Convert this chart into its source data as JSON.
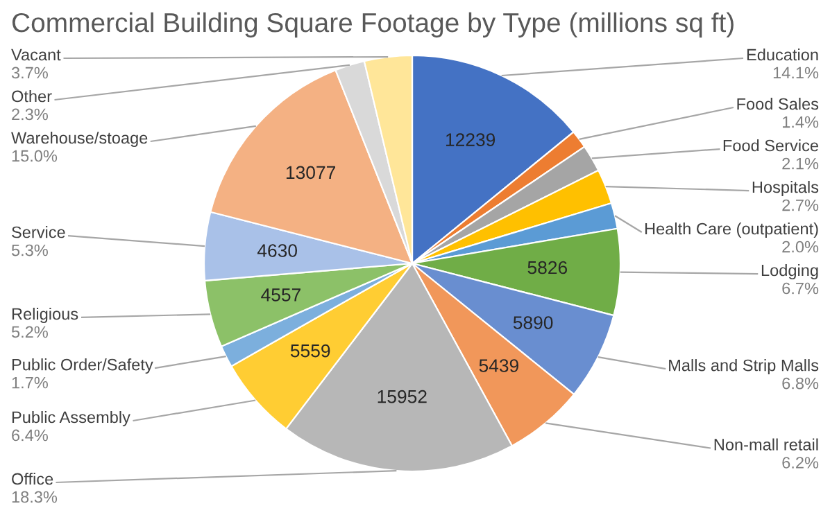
{
  "chart_data": {
    "type": "pie",
    "title": "Commercial Building Square Footage by Type (millions sq ft)",
    "categories": [
      "Education",
      "Food Sales",
      "Food Service",
      "Hospitals",
      "Health Care (outpatient)",
      "Lodging",
      "Malls and Strip Malls",
      "Non-mall retail",
      "Office",
      "Public Assembly",
      "Public Order/Safety",
      "Religious",
      "Service",
      "Warehouse/stoage",
      "Other",
      "Vacant"
    ],
    "values": [
      14.1,
      1.4,
      2.1,
      2.7,
      2.0,
      6.7,
      6.8,
      6.2,
      18.3,
      6.4,
      1.7,
      5.2,
      5.3,
      15.0,
      2.3,
      3.7
    ],
    "value_labels": [
      "14.1%",
      "1.4%",
      "2.1%",
      "2.7%",
      "2.0%",
      "6.7%",
      "6.8%",
      "6.2%",
      "18.3%",
      "6.4%",
      "1.7%",
      "5.2%",
      "5.3%",
      "15.0%",
      "2.3%",
      "3.7%"
    ],
    "colors": [
      "#4472c4",
      "#ed7d31",
      "#a5a5a5",
      "#ffc000",
      "#5b9bd5",
      "#70ad47",
      "#698ed0",
      "#f1975a",
      "#b7b7b7",
      "#ffcd33",
      "#7cafdd",
      "#8cc168",
      "#a9c1e8",
      "#f4b183",
      "#d9d9d9",
      "#ffe699"
    ],
    "annotations": [
      {
        "text": "12239",
        "x": "Education"
      },
      {
        "text": "5826",
        "x": "Lodging"
      },
      {
        "text": "5890",
        "x": "Malls and Strip Malls"
      },
      {
        "text": "5439",
        "x": "Non-mall retail"
      },
      {
        "text": "15952",
        "x": "Office"
      },
      {
        "text": "5559",
        "x": "Public Assembly"
      },
      {
        "text": "4557",
        "x": "Religious"
      },
      {
        "text": "4630",
        "x": "Service"
      },
      {
        "text": "13077",
        "x": "Warehouse/stoage"
      }
    ],
    "legend": false
  }
}
